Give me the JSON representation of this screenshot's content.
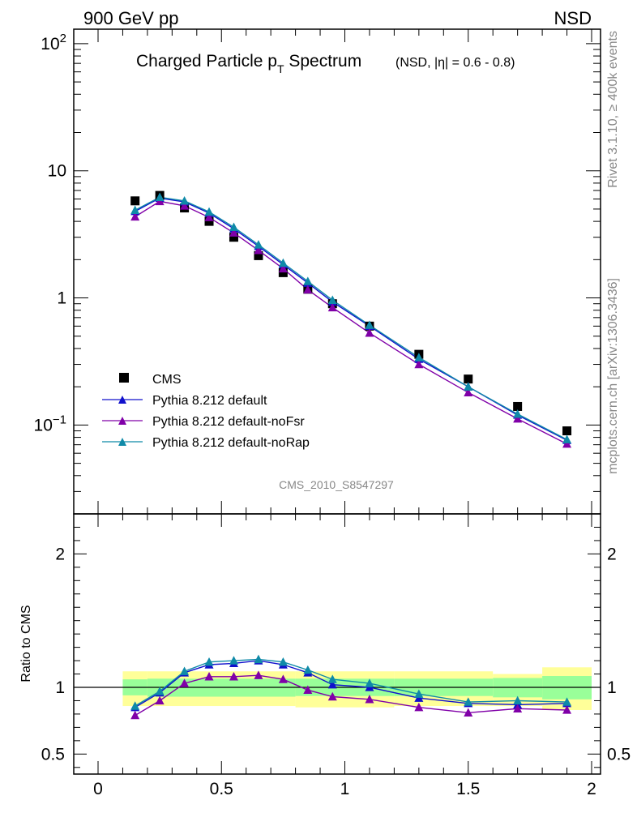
{
  "header": {
    "energy_label": "900 GeV pp",
    "process_label": "NSD"
  },
  "side_labels": {
    "rivet": "Rivet 3.1.10, ≥ 400k events",
    "source": "mcplots.cern.ch [arXiv:1306.3436]"
  },
  "colors": {
    "cms": "#000000",
    "default": "#1010cc",
    "noFsr": "#8000a8",
    "noRap": "#0f8aa8",
    "band_inner": "#99ff99",
    "band_outer": "#ffff99"
  },
  "chart_data": [
    {
      "type": "scatter",
      "scale": "log",
      "title": "Charged Particle p",
      "title_sub": "T",
      "title_tail": " Spectrum",
      "title_note": "(NSD, |η| = 0.6 - 0.8)",
      "analysis_label": "CMS_2010_S8547297",
      "xlim": [
        0,
        2
      ],
      "ylim": [
        0.02,
        130
      ],
      "x_ticks": [
        0,
        0.5,
        1,
        1.5,
        2
      ],
      "y_tick_labels": [
        {
          "value": 100,
          "base": "10",
          "exp": "2"
        },
        {
          "value": 10,
          "base": "10",
          "exp": ""
        },
        {
          "value": 1,
          "base": "1",
          "exp": ""
        },
        {
          "value": 0.1,
          "base": "10",
          "exp": "−1"
        }
      ],
      "legend": [
        "CMS",
        "Pythia 8.212 default",
        "Pythia 8.212 default-noFsr",
        "Pythia 8.212 default-noRap"
      ],
      "x": [
        0.15,
        0.25,
        0.35,
        0.45,
        0.55,
        0.65,
        0.75,
        0.85,
        0.95,
        1.1,
        1.3,
        1.5,
        1.7,
        1.9
      ],
      "series": [
        {
          "name": "CMS",
          "marker": "square",
          "values": [
            5.8,
            6.4,
            5.1,
            4.0,
            3.0,
            2.15,
            1.58,
            1.17,
            0.9,
            0.6,
            0.36,
            0.23,
            0.14,
            0.09
          ]
        },
        {
          "name": "Pythia 8.212 default",
          "marker": "triangle",
          "values": [
            4.8,
            6.1,
            5.7,
            4.65,
            3.5,
            2.55,
            1.83,
            1.31,
            0.93,
            0.6,
            0.33,
            0.2,
            0.12,
            0.076
          ]
        },
        {
          "name": "Pythia 8.212 default-noFsr",
          "marker": "triangle",
          "values": [
            4.35,
            5.75,
            5.3,
            4.3,
            3.25,
            2.37,
            1.7,
            1.16,
            0.84,
            0.53,
            0.3,
            0.18,
            0.112,
            0.071
          ]
        },
        {
          "name": "Pythia 8.212 default-noRap",
          "marker": "triangle",
          "values": [
            4.9,
            6.2,
            5.8,
            4.75,
            3.6,
            2.62,
            1.88,
            1.35,
            0.96,
            0.61,
            0.34,
            0.2,
            0.122,
            0.077
          ]
        }
      ]
    },
    {
      "type": "line",
      "ylabel": "Ratio to CMS",
      "xlim": [
        0,
        2
      ],
      "ylim": [
        0.35,
        2.3
      ],
      "x_ticks": [
        0,
        0.5,
        1,
        1.5,
        2
      ],
      "y_ticks": [
        0.5,
        1,
        2
      ],
      "x": [
        0.15,
        0.25,
        0.35,
        0.45,
        0.55,
        0.65,
        0.75,
        0.85,
        0.95,
        1.1,
        1.3,
        1.5,
        1.7,
        1.9
      ],
      "band_bins": [
        {
          "lo": 0.1,
          "hi": 0.2,
          "inner": [
            0.94,
            1.06
          ],
          "outer": [
            0.86,
            1.12
          ]
        },
        {
          "lo": 0.2,
          "hi": 0.8,
          "inner": [
            0.93,
            1.065
          ],
          "outer": [
            0.86,
            1.12
          ]
        },
        {
          "lo": 0.8,
          "hi": 1.2,
          "inner": [
            0.935,
            1.065
          ],
          "outer": [
            0.85,
            1.12
          ]
        },
        {
          "lo": 1.2,
          "hi": 1.6,
          "inner": [
            0.935,
            1.065
          ],
          "outer": [
            0.86,
            1.12
          ]
        },
        {
          "lo": 1.6,
          "hi": 1.8,
          "inner": [
            0.925,
            1.07
          ],
          "outer": [
            0.86,
            1.1
          ]
        },
        {
          "lo": 1.8,
          "hi": 2.0,
          "inner": [
            0.91,
            1.085
          ],
          "outer": [
            0.83,
            1.15
          ]
        }
      ],
      "series": [
        {
          "name": "Pythia 8.212 default",
          "values": [
            0.85,
            0.96,
            1.11,
            1.17,
            1.18,
            1.2,
            1.17,
            1.11,
            1.02,
            1.0,
            0.92,
            0.88,
            0.87,
            0.88
          ]
        },
        {
          "name": "Pythia 8.212 default-noFsr",
          "values": [
            0.79,
            0.9,
            1.03,
            1.08,
            1.08,
            1.09,
            1.06,
            0.98,
            0.93,
            0.91,
            0.85,
            0.81,
            0.84,
            0.83
          ]
        },
        {
          "name": "Pythia 8.212 default-noRap",
          "values": [
            0.86,
            0.97,
            1.12,
            1.19,
            1.2,
            1.21,
            1.19,
            1.13,
            1.06,
            1.03,
            0.95,
            0.89,
            0.9,
            0.89
          ]
        }
      ]
    }
  ]
}
